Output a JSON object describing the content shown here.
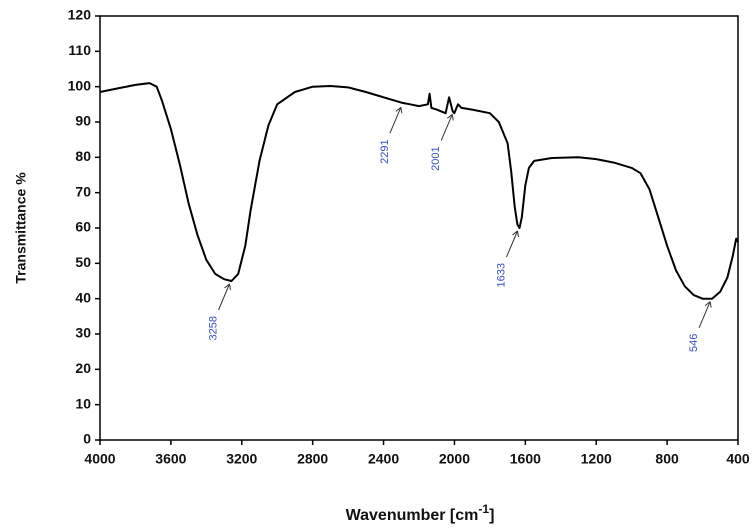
{
  "chart_data": {
    "type": "line",
    "xlabel": {
      "text": "Wavenumber [cm",
      "superscript": "-1",
      "suffix": "]"
    },
    "ylabel": "Transmittance %",
    "color": "#000000",
    "xlim": [
      4000,
      400
    ],
    "ylim": [
      0,
      120
    ],
    "xticks": [
      4000,
      3600,
      3200,
      2800,
      2400,
      2000,
      1600,
      1200,
      800,
      400
    ],
    "yticks": [
      0,
      10,
      20,
      30,
      40,
      50,
      60,
      70,
      80,
      90,
      100,
      110,
      120
    ],
    "x": [
      4000,
      3900,
      3800,
      3720,
      3680,
      3650,
      3600,
      3550,
      3500,
      3450,
      3400,
      3350,
      3300,
      3258,
      3220,
      3180,
      3150,
      3100,
      3050,
      3000,
      2900,
      2800,
      2700,
      2600,
      2500,
      2400,
      2300,
      2250,
      2200,
      2150,
      2140,
      2130,
      2100,
      2050,
      2030,
      2010,
      2001,
      1980,
      1960,
      1900,
      1800,
      1750,
      1700,
      1680,
      1660,
      1645,
      1633,
      1620,
      1600,
      1580,
      1550,
      1450,
      1300,
      1200,
      1100,
      1000,
      950,
      900,
      850,
      800,
      750,
      700,
      650,
      600,
      546,
      500,
      460,
      430,
      410,
      400
    ],
    "values": [
      98.5,
      99.5,
      100.5,
      101,
      100,
      96,
      88,
      78,
      67,
      58,
      51,
      47,
      45.5,
      45,
      47,
      55,
      65,
      79,
      89,
      95,
      98.5,
      100,
      100.2,
      99.8,
      98.5,
      97,
      95.5,
      95,
      94.5,
      95,
      98,
      94,
      93.5,
      92.5,
      97,
      93,
      92.5,
      95,
      94,
      93.5,
      92.5,
      90,
      84,
      76,
      66,
      61,
      60,
      63,
      72,
      77,
      79,
      79.8,
      80,
      79.5,
      78.5,
      77,
      75.5,
      71,
      63,
      55,
      48,
      43.5,
      41,
      40,
      40,
      42,
      46,
      52,
      57,
      56
    ],
    "annotations": [
      {
        "label": "3258",
        "x": 3258,
        "y": 45
      },
      {
        "label": "2291",
        "x": 2291,
        "y": 95
      },
      {
        "label": "2001",
        "x": 2001,
        "y": 93
      },
      {
        "label": "1633",
        "x": 1633,
        "y": 60
      },
      {
        "label": "546",
        "x": 546,
        "y": 40
      }
    ]
  }
}
